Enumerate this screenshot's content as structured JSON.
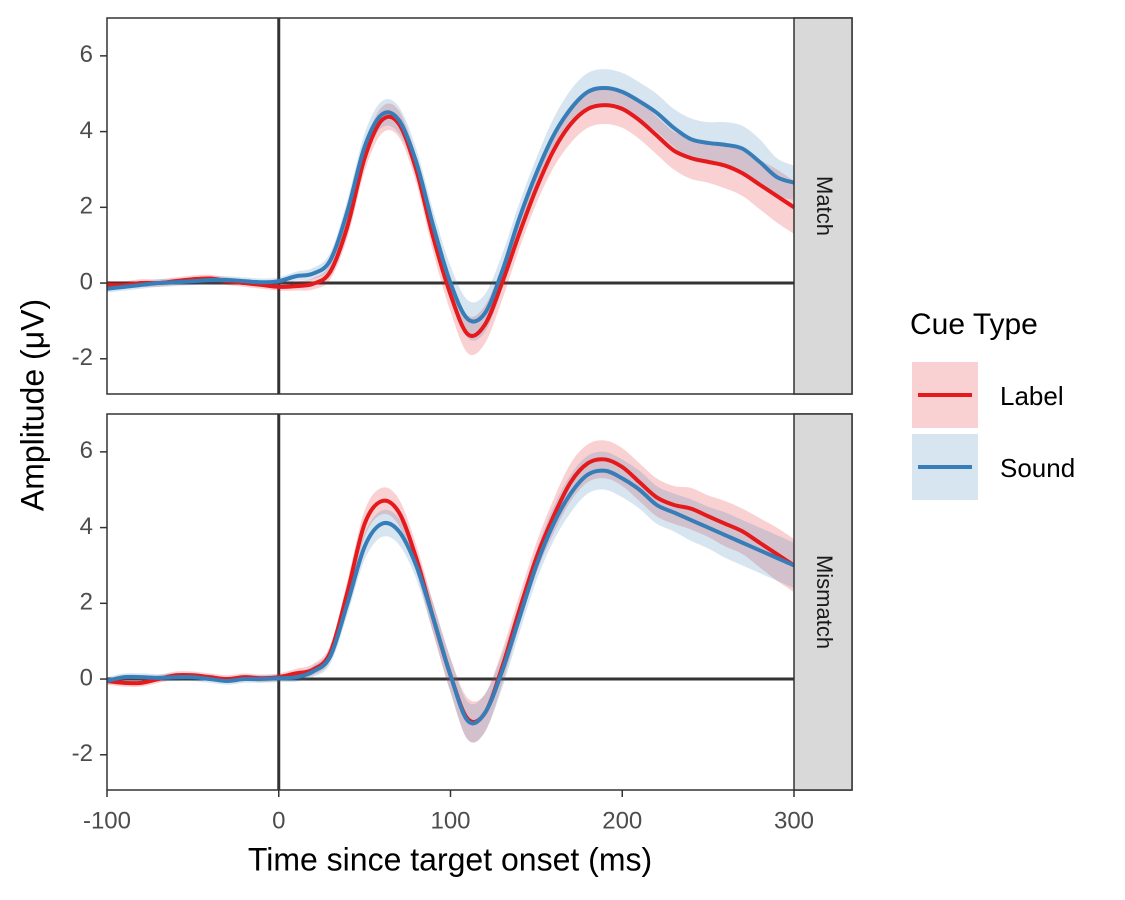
{
  "chart_data": {
    "type": "line",
    "xlabel": "Time since target onset (ms)",
    "ylabel": "Amplitude (μV)",
    "legend_title": "Cue Type",
    "x": [
      -100,
      -90,
      -80,
      -70,
      -60,
      -50,
      -40,
      -30,
      -20,
      -10,
      0,
      10,
      20,
      30,
      40,
      50,
      60,
      70,
      80,
      90,
      100,
      110,
      120,
      130,
      140,
      150,
      160,
      170,
      180,
      190,
      200,
      210,
      220,
      230,
      240,
      250,
      260,
      270,
      280,
      290,
      300
    ],
    "xlim": [
      -100,
      300
    ],
    "xticks": [
      -100,
      0,
      100,
      200,
      300
    ],
    "ylim": [
      -2.93,
      7.0
    ],
    "yticks": [
      -2,
      0,
      2,
      4,
      6
    ],
    "reference_lines": {
      "x": 0,
      "y": 0
    },
    "series": [
      {
        "name": "Label",
        "color": "#e41a1c"
      },
      {
        "name": "Sound",
        "color": "#377eb8"
      }
    ],
    "panels": [
      {
        "strip": "Match",
        "values": [
          [
            -0.05,
            -0.05,
            0,
            0,
            0.05,
            0.1,
            0.12,
            0.05,
            0,
            -0.05,
            -0.1,
            -0.08,
            -0.02,
            0.3,
            1.5,
            3.3,
            4.3,
            4.2,
            3.0,
            1.2,
            -0.3,
            -1.35,
            -1.1,
            0,
            1.3,
            2.5,
            3.5,
            4.2,
            4.6,
            4.7,
            4.6,
            4.3,
            3.9,
            3.5,
            3.3,
            3.2,
            3.1,
            2.9,
            2.6,
            2.3,
            2.0
          ],
          [
            -0.15,
            -0.1,
            -0.05,
            0,
            0.02,
            0.05,
            0.08,
            0.08,
            0.05,
            0.02,
            0.05,
            0.18,
            0.25,
            0.6,
            1.9,
            3.6,
            4.45,
            4.3,
            3.2,
            1.5,
            0.0,
            -0.95,
            -0.8,
            0.3,
            1.7,
            2.9,
            3.9,
            4.6,
            5.05,
            5.15,
            5.05,
            4.8,
            4.5,
            4.1,
            3.8,
            3.7,
            3.65,
            3.55,
            3.2,
            2.8,
            2.65
          ]
        ],
        "ci": [
          [
            0.1,
            0.1,
            0.1,
            0.1,
            0.1,
            0.1,
            0.1,
            0.1,
            0.1,
            0.1,
            0.1,
            0.12,
            0.15,
            0.2,
            0.3,
            0.35,
            0.35,
            0.35,
            0.35,
            0.4,
            0.45,
            0.5,
            0.5,
            0.45,
            0.4,
            0.4,
            0.45,
            0.5,
            0.5,
            0.5,
            0.5,
            0.5,
            0.5,
            0.5,
            0.55,
            0.55,
            0.6,
            0.6,
            0.65,
            0.7,
            0.7
          ],
          [
            0.1,
            0.1,
            0.1,
            0.1,
            0.1,
            0.1,
            0.1,
            0.1,
            0.1,
            0.1,
            0.1,
            0.12,
            0.15,
            0.2,
            0.3,
            0.35,
            0.35,
            0.35,
            0.35,
            0.4,
            0.45,
            0.5,
            0.5,
            0.45,
            0.4,
            0.4,
            0.45,
            0.5,
            0.5,
            0.5,
            0.5,
            0.5,
            0.5,
            0.5,
            0.55,
            0.55,
            0.6,
            0.6,
            0.6,
            0.5,
            0.45
          ]
        ]
      },
      {
        "strip": "Mismatch",
        "values": [
          [
            -0.05,
            -0.1,
            -0.1,
            0,
            0.1,
            0.1,
            0.05,
            0,
            0.05,
            0.02,
            0.05,
            0.15,
            0.25,
            0.7,
            2.3,
            4.1,
            4.7,
            4.4,
            3.2,
            1.6,
            0.1,
            -1.05,
            -0.9,
            0.3,
            1.8,
            3.2,
            4.3,
            5.2,
            5.7,
            5.8,
            5.6,
            5.2,
            4.8,
            4.6,
            4.5,
            4.3,
            4.1,
            3.9,
            3.6,
            3.3,
            3.0
          ],
          [
            -0.05,
            0.05,
            0.05,
            0.03,
            0.05,
            0.05,
            0,
            -0.05,
            0,
            0,
            0.02,
            0.05,
            0.2,
            0.6,
            2.0,
            3.5,
            4.1,
            3.9,
            3.0,
            1.6,
            0.1,
            -1.1,
            -0.9,
            0.2,
            1.6,
            3.0,
            4.1,
            4.9,
            5.4,
            5.5,
            5.3,
            5.0,
            4.6,
            4.4,
            4.2,
            4.0,
            3.8,
            3.6,
            3.4,
            3.2,
            3.0
          ]
        ],
        "ci": [
          [
            0.1,
            0.1,
            0.1,
            0.1,
            0.1,
            0.1,
            0.1,
            0.1,
            0.1,
            0.1,
            0.1,
            0.12,
            0.15,
            0.2,
            0.3,
            0.35,
            0.35,
            0.35,
            0.35,
            0.4,
            0.45,
            0.55,
            0.5,
            0.45,
            0.4,
            0.4,
            0.45,
            0.5,
            0.5,
            0.5,
            0.5,
            0.5,
            0.5,
            0.5,
            0.55,
            0.55,
            0.6,
            0.6,
            0.65,
            0.7,
            0.7
          ],
          [
            0.1,
            0.1,
            0.1,
            0.1,
            0.1,
            0.1,
            0.1,
            0.1,
            0.1,
            0.1,
            0.1,
            0.12,
            0.15,
            0.2,
            0.3,
            0.35,
            0.35,
            0.35,
            0.35,
            0.4,
            0.45,
            0.5,
            0.5,
            0.45,
            0.4,
            0.4,
            0.45,
            0.5,
            0.5,
            0.5,
            0.5,
            0.5,
            0.5,
            0.5,
            0.55,
            0.55,
            0.6,
            0.6,
            0.6,
            0.6,
            0.6
          ]
        ]
      }
    ]
  }
}
